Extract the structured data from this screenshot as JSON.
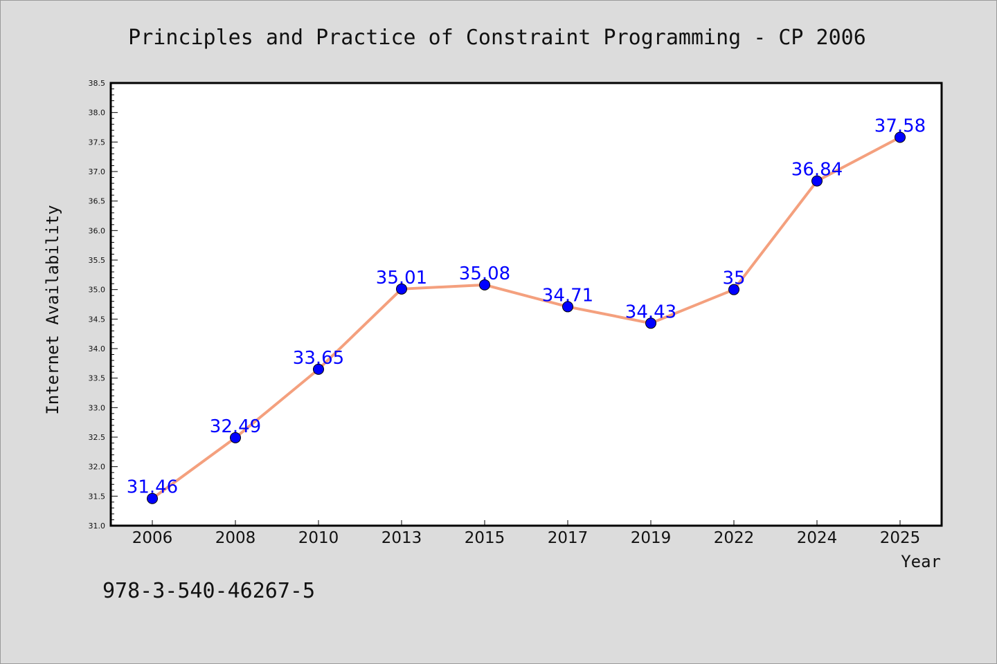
{
  "chart_data": {
    "type": "line",
    "title": "Principles and Practice of Constraint Programming - CP 2006",
    "xlabel": "Year",
    "ylabel": "Internet Availability",
    "categories": [
      "2006",
      "2008",
      "2010",
      "2013",
      "2015",
      "2017",
      "2019",
      "2022",
      "2024",
      "2025"
    ],
    "series": [
      {
        "values": [
          31.46,
          32.49,
          33.65,
          35.01,
          35.08,
          34.71,
          34.43,
          35,
          36.84,
          37.58
        ],
        "data_labels": [
          "31.46",
          "32.49",
          "33.65",
          "35.01",
          "35.08",
          "34.71",
          "34.43",
          "35",
          "36.84",
          "37.58"
        ],
        "line_color": "#f4a07e",
        "marker_color": "#0000ff"
      }
    ],
    "ylim": [
      31.0,
      38.5
    ],
    "yticks": [
      "31.0",
      "31.5",
      "32.0",
      "32.5",
      "33.0",
      "33.5",
      "34.0",
      "34.5",
      "35.0",
      "35.5",
      "36.0",
      "36.5",
      "37.0",
      "37.5",
      "38.0",
      "38.5"
    ],
    "grid": false,
    "legend": "none"
  },
  "footer": {
    "isbn": "978-3-540-46267-5"
  },
  "colors": {
    "background": "#dcdcdc",
    "plot_background": "#ffffff",
    "label_color": "#0000ff"
  }
}
